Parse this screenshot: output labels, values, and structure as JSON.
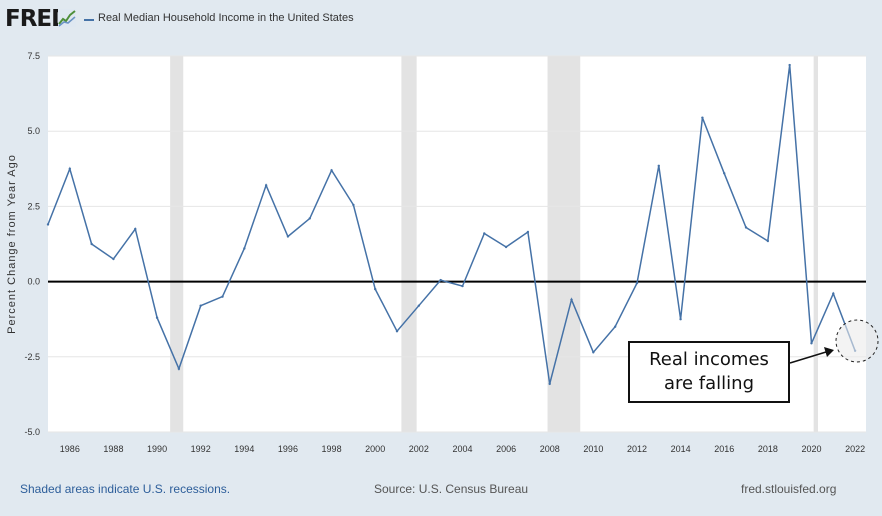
{
  "header": {
    "logo": "FRED",
    "logo_icon": "trend-line-icon",
    "series_title": "Real Median Household Income in the United States"
  },
  "colors": {
    "background": "#e1e9f0",
    "plot_background": "#ffffff",
    "series_line": "#4572a7",
    "recession_band": "#e3e3e3",
    "zero_line": "#000000",
    "footer_link": "#2d5e9a"
  },
  "chart_data": {
    "type": "line",
    "title": "Real Median Household Income in the United States",
    "ylabel": "Percent Change from Year Ago",
    "xlabel": "",
    "ylim": [
      -5.0,
      7.5
    ],
    "y_ticks": [
      "7.5",
      "5.0",
      "2.5",
      "0.0",
      "-2.5",
      "-5.0"
    ],
    "x_ticks": [
      "1986",
      "1988",
      "1990",
      "1992",
      "1994",
      "1996",
      "1998",
      "2000",
      "2002",
      "2004",
      "2006",
      "2008",
      "2010",
      "2012",
      "2014",
      "2016",
      "2018",
      "2020",
      "2022"
    ],
    "grid": "horizontal",
    "reference_line": 0.0,
    "recessions": [
      {
        "start": 1990.6,
        "end": 1991.2
      },
      {
        "start": 2001.2,
        "end": 2001.9
      },
      {
        "start": 2007.9,
        "end": 2009.4
      },
      {
        "start": 2020.1,
        "end": 2020.3
      }
    ],
    "series": [
      {
        "name": "Real Median Household Income in the United States",
        "x": [
          1985,
          1986,
          1987,
          1988,
          1989,
          1990,
          1991,
          1992,
          1993,
          1994,
          1995,
          1996,
          1997,
          1998,
          1999,
          2000,
          2001,
          2002,
          2003,
          2004,
          2005,
          2006,
          2007,
          2008,
          2009,
          2010,
          2011,
          2012,
          2013,
          2014,
          2015,
          2016,
          2017,
          2018,
          2019,
          2020,
          2021,
          2022
        ],
        "values": [
          1.9,
          3.75,
          1.25,
          0.75,
          1.75,
          -1.2,
          -2.9,
          -0.8,
          -0.5,
          1.1,
          3.2,
          1.5,
          2.1,
          3.7,
          2.55,
          -0.25,
          -1.65,
          -0.8,
          0.05,
          -0.15,
          1.6,
          1.15,
          1.65,
          -3.4,
          -0.6,
          -2.35,
          -1.5,
          -0.05,
          3.85,
          -1.25,
          5.45,
          3.6,
          1.8,
          1.35,
          7.2,
          -2.05,
          -0.4,
          -2.3
        ]
      }
    ]
  },
  "annotation": {
    "text": "Real incomes\nare falling"
  },
  "footer": {
    "note": "Shaded areas indicate U.S. recessions.",
    "source": "Source: U.S. Census Bureau",
    "url": "fred.stlouisfed.org"
  }
}
